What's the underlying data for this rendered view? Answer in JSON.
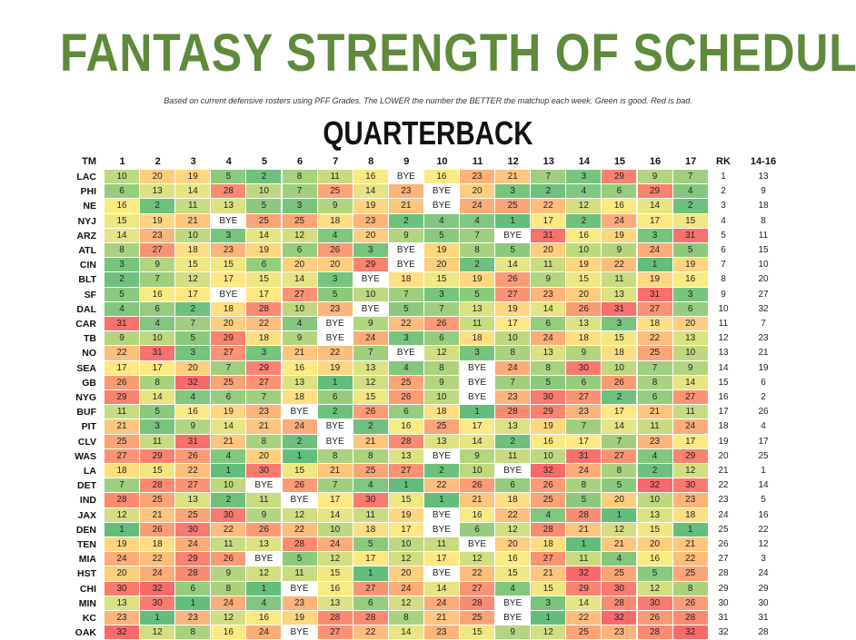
{
  "header": {
    "title": "FANTASY STRENGTH OF SCHEDULE",
    "subtitle": "Based on current defensive rosters using PFF Grades. The LOWER the number the BETTER the matchup each week. Green is good. Red is bad.",
    "section": "QUARTERBACK"
  },
  "colors": {
    "good": "#63be7b",
    "mid": "#ffeb84",
    "bad": "#f8696b",
    "bye": "#ffffff",
    "title": "#5e8a3a"
  },
  "chart_data": {
    "type": "heatmap",
    "title": "FANTASY STRENGTH OF SCHEDULE",
    "subtitle": "QUARTERBACK",
    "columns": [
      "TM",
      "1",
      "2",
      "3",
      "4",
      "5",
      "6",
      "7",
      "8",
      "9",
      "10",
      "11",
      "12",
      "13",
      "14",
      "15",
      "16",
      "17",
      "RK",
      "14-16"
    ],
    "value_range": [
      1,
      32
    ],
    "rows": [
      {
        "team": "LAC",
        "weeks": [
          10,
          20,
          19,
          5,
          2,
          8,
          11,
          16,
          "BYE",
          16,
          23,
          21,
          7,
          3,
          29,
          9,
          7
        ],
        "rk": 1,
        "r1416": 13
      },
      {
        "team": "PHI",
        "weeks": [
          6,
          13,
          14,
          28,
          10,
          7,
          25,
          14,
          23,
          "BYE",
          20,
          3,
          2,
          4,
          6,
          29,
          4
        ],
        "rk": 2,
        "r1416": 9
      },
      {
        "team": "NE",
        "weeks": [
          16,
          2,
          11,
          13,
          5,
          3,
          9,
          19,
          21,
          "BYE",
          24,
          25,
          22,
          12,
          16,
          14,
          2
        ],
        "rk": 3,
        "r1416": 18
      },
      {
        "team": "NYJ",
        "weeks": [
          15,
          19,
          21,
          "BYE",
          25,
          25,
          18,
          23,
          2,
          4,
          4,
          1,
          17,
          2,
          24,
          17,
          15
        ],
        "rk": 4,
        "r1416": 8
      },
      {
        "team": "ARZ",
        "weeks": [
          14,
          23,
          10,
          3,
          14,
          12,
          4,
          20,
          9,
          5,
          7,
          "BYE",
          31,
          16,
          19,
          3,
          31
        ],
        "rk": 5,
        "r1416": 11
      },
      {
        "team": "ATL",
        "weeks": [
          8,
          27,
          18,
          23,
          19,
          6,
          26,
          3,
          "BYE",
          19,
          8,
          5,
          20,
          10,
          9,
          24,
          5
        ],
        "rk": 6,
        "r1416": 15
      },
      {
        "team": "CIN",
        "weeks": [
          3,
          9,
          15,
          15,
          6,
          20,
          20,
          29,
          "BYE",
          20,
          2,
          14,
          11,
          19,
          22,
          1,
          19
        ],
        "rk": 7,
        "r1416": 10
      },
      {
        "team": "BLT",
        "weeks": [
          2,
          7,
          12,
          17,
          15,
          14,
          3,
          "BYE",
          18,
          15,
          19,
          26,
          9,
          15,
          11,
          19,
          16
        ],
        "rk": 8,
        "r1416": 20
      },
      {
        "team": "SF",
        "weeks": [
          5,
          16,
          17,
          "BYE",
          17,
          27,
          5,
          10,
          7,
          3,
          5,
          27,
          23,
          20,
          13,
          31,
          3
        ],
        "rk": 9,
        "r1416": 27
      },
      {
        "team": "DAL",
        "weeks": [
          4,
          6,
          2,
          18,
          28,
          10,
          23,
          "BYE",
          5,
          7,
          13,
          19,
          14,
          26,
          31,
          27,
          6
        ],
        "rk": 10,
        "r1416": 32
      },
      {
        "team": "CAR",
        "weeks": [
          31,
          4,
          7,
          20,
          22,
          4,
          "BYE",
          9,
          22,
          26,
          11,
          17,
          6,
          13,
          3,
          18,
          20
        ],
        "rk": 11,
        "r1416": 7
      },
      {
        "team": "TB",
        "weeks": [
          9,
          10,
          5,
          29,
          18,
          9,
          "BYE",
          24,
          3,
          6,
          18,
          10,
          24,
          18,
          15,
          22,
          13
        ],
        "rk": 12,
        "r1416": 23
      },
      {
        "team": "NO",
        "weeks": [
          22,
          31,
          3,
          27,
          3,
          21,
          22,
          7,
          "BYE",
          12,
          3,
          8,
          13,
          9,
          18,
          25,
          10
        ],
        "rk": 13,
        "r1416": 21
      },
      {
        "team": "SEA",
        "weeks": [
          17,
          17,
          20,
          7,
          29,
          16,
          19,
          13,
          4,
          8,
          "BYE",
          24,
          8,
          30,
          10,
          7,
          9
        ],
        "rk": 14,
        "r1416": 19
      },
      {
        "team": "GB",
        "weeks": [
          26,
          8,
          32,
          25,
          27,
          13,
          1,
          12,
          25,
          9,
          "BYE",
          7,
          5,
          6,
          26,
          8,
          14
        ],
        "rk": 15,
        "r1416": 6
      },
      {
        "team": "NYG",
        "weeks": [
          29,
          14,
          4,
          6,
          7,
          18,
          6,
          15,
          26,
          10,
          "BYE",
          23,
          30,
          27,
          2,
          6,
          27
        ],
        "rk": 16,
        "r1416": 2
      },
      {
        "team": "BUF",
        "weeks": [
          11,
          5,
          16,
          19,
          23,
          "BYE",
          2,
          26,
          6,
          18,
          1,
          28,
          29,
          23,
          17,
          21,
          11
        ],
        "rk": 17,
        "r1416": 26
      },
      {
        "team": "PIT",
        "weeks": [
          21,
          3,
          9,
          14,
          21,
          24,
          "BYE",
          2,
          16,
          25,
          17,
          13,
          19,
          7,
          14,
          11,
          24
        ],
        "rk": 18,
        "r1416": 4
      },
      {
        "team": "CLV",
        "weeks": [
          25,
          11,
          31,
          21,
          8,
          2,
          "BYE",
          21,
          28,
          13,
          14,
          2,
          16,
          17,
          7,
          23,
          17
        ],
        "rk": 19,
        "r1416": 17
      },
      {
        "team": "WAS",
        "weeks": [
          27,
          29,
          26,
          4,
          20,
          1,
          8,
          8,
          13,
          "BYE",
          9,
          11,
          10,
          31,
          27,
          4,
          29
        ],
        "rk": 20,
        "r1416": 25
      },
      {
        "team": "LA",
        "weeks": [
          18,
          15,
          22,
          1,
          30,
          15,
          21,
          25,
          27,
          2,
          10,
          "BYE",
          32,
          24,
          8,
          2,
          12
        ],
        "rk": 21,
        "r1416": 1
      },
      {
        "team": "DET",
        "weeks": [
          7,
          28,
          27,
          10,
          "BYE",
          26,
          7,
          4,
          1,
          22,
          26,
          6,
          26,
          8,
          5,
          32,
          30
        ],
        "rk": 22,
        "r1416": 14
      },
      {
        "team": "IND",
        "weeks": [
          28,
          25,
          13,
          2,
          11,
          "BYE",
          17,
          30,
          15,
          1,
          21,
          18,
          25,
          5,
          20,
          10,
          23
        ],
        "rk": 23,
        "r1416": 5
      },
      {
        "team": "JAX",
        "weeks": [
          12,
          21,
          25,
          30,
          9,
          12,
          14,
          11,
          19,
          "BYE",
          16,
          22,
          4,
          28,
          1,
          13,
          18
        ],
        "rk": 24,
        "r1416": 16
      },
      {
        "team": "DEN",
        "weeks": [
          1,
          26,
          30,
          22,
          26,
          22,
          10,
          18,
          17,
          "BYE",
          6,
          12,
          28,
          21,
          12,
          15,
          1
        ],
        "rk": 25,
        "r1416": 22
      },
      {
        "team": "TEN",
        "weeks": [
          19,
          18,
          24,
          11,
          13,
          28,
          24,
          5,
          10,
          11,
          "BYE",
          20,
          18,
          1,
          21,
          20,
          21
        ],
        "rk": 26,
        "r1416": 12
      },
      {
        "team": "MIA",
        "weeks": [
          24,
          22,
          29,
          26,
          "BYE",
          5,
          12,
          17,
          12,
          17,
          12,
          16,
          27,
          11,
          4,
          16,
          22
        ],
        "rk": 27,
        "r1416": 3
      },
      {
        "team": "HST",
        "weeks": [
          20,
          24,
          28,
          9,
          12,
          11,
          15,
          1,
          20,
          "BYE",
          22,
          15,
          21,
          32,
          25,
          5,
          25
        ],
        "rk": 28,
        "r1416": 24
      },
      {
        "team": "CHI",
        "weeks": [
          30,
          32,
          6,
          8,
          1,
          "BYE",
          16,
          27,
          24,
          14,
          27,
          4,
          15,
          29,
          30,
          12,
          8
        ],
        "rk": 29,
        "r1416": 29
      },
      {
        "team": "MIN",
        "weeks": [
          13,
          30,
          1,
          24,
          4,
          23,
          13,
          6,
          12,
          24,
          28,
          "BYE",
          3,
          14,
          28,
          30,
          26
        ],
        "rk": 30,
        "r1416": 30
      },
      {
        "team": "KC",
        "weeks": [
          23,
          1,
          23,
          12,
          16,
          19,
          28,
          28,
          8,
          21,
          25,
          "BYE",
          1,
          22,
          32,
          26,
          28
        ],
        "rk": 31,
        "r1416": 31
      },
      {
        "team": "OAK",
        "weeks": [
          32,
          12,
          8,
          16,
          24,
          "BYE",
          27,
          22,
          14,
          23,
          15,
          9,
          12,
          25,
          23,
          28,
          32
        ],
        "rk": 32,
        "r1416": 28
      }
    ]
  }
}
